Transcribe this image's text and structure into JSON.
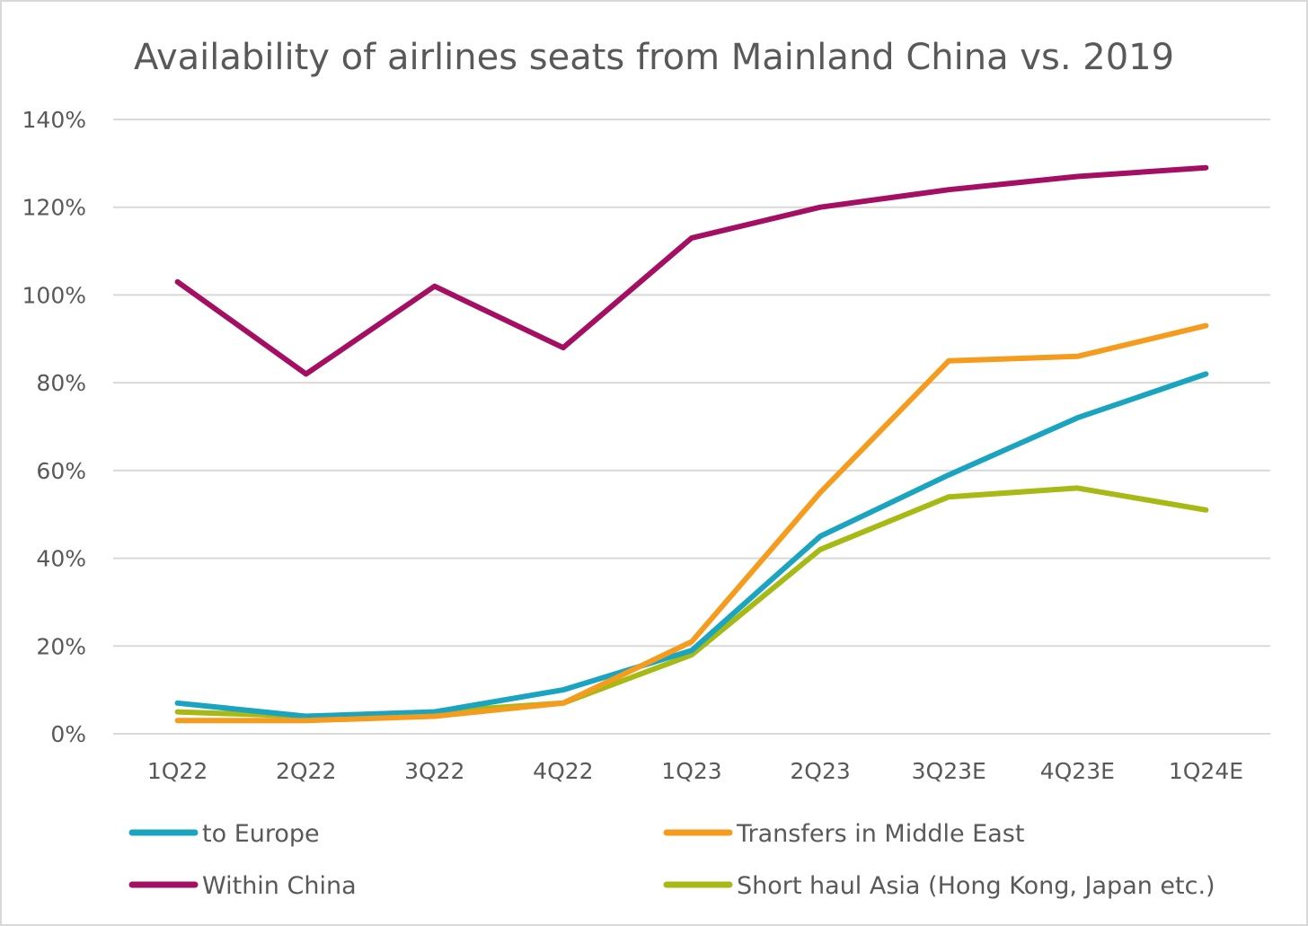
{
  "chart_data": {
    "type": "line",
    "title": "Availability of airlines seats from Mainland China vs. 2019",
    "xlabel": "",
    "ylabel": "",
    "categories": [
      "1Q22",
      "2Q22",
      "3Q22",
      "4Q22",
      "1Q23",
      "2Q23",
      "3Q23E",
      "4Q23E",
      "1Q24E"
    ],
    "ylim": [
      0,
      140
    ],
    "yticks": [
      0,
      20,
      40,
      60,
      80,
      100,
      120,
      140
    ],
    "yticks_labels": [
      "0%",
      "20%",
      "40%",
      "60%",
      "80%",
      "100%",
      "120%",
      "140%"
    ],
    "grid": true,
    "legend_position": "bottom",
    "series": [
      {
        "name": "to Europe",
        "color": "#1aa4c0",
        "values": [
          7,
          4,
          5,
          10,
          19,
          45,
          59,
          72,
          82
        ]
      },
      {
        "name": "Transfers in Middle East",
        "color": "#f59c1f",
        "values": [
          3,
          3,
          4,
          7,
          21,
          55,
          85,
          86,
          93
        ]
      },
      {
        "name": "Within China",
        "color": "#a50f63",
        "values": [
          103,
          82,
          102,
          88,
          113,
          120,
          124,
          127,
          129
        ]
      },
      {
        "name": "Short haul Asia (Hong Kong, Japan etc.)",
        "color": "#a6b915",
        "values": [
          5,
          4,
          5,
          7,
          18,
          42,
          54,
          56,
          51
        ]
      }
    ]
  }
}
